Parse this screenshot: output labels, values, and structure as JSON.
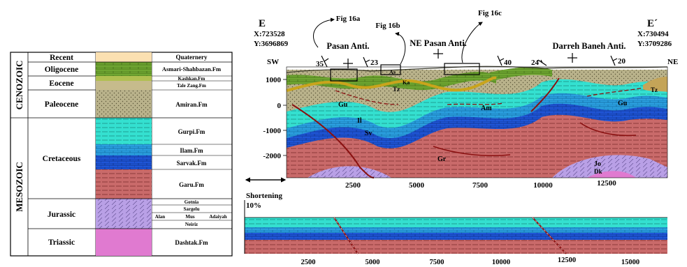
{
  "stratigraphic_column": {
    "eras": [
      "CENOZOIC",
      "MESOZOIC"
    ],
    "periods": [
      "Recent",
      "Oligocene",
      "Eocene",
      "Paleocene",
      "Cretaceous",
      "Jurassic",
      "Triassic"
    ],
    "formations": [
      "Quaternery",
      "Asmari-Shahbazan.Fm",
      "Kashkan.Fm",
      "Tale Zang.Fm",
      "Amiran.Fm",
      "Gurpi.Fm",
      "Ilam.Fm",
      "Sarvak.Fm",
      "Garu.Fm",
      "Gotnia",
      "Sargelu",
      "Alan",
      "Mus",
      "Adaiyah",
      "Neiriz",
      "Dashtak.Fm"
    ]
  },
  "section": {
    "endpoint_left": {
      "label": "E",
      "x": "X:723528",
      "y": "Y:3696869"
    },
    "endpoint_right": {
      "label": "E´",
      "x": "X:730494",
      "y": "Y:3709286"
    },
    "direction_left": "SW",
    "direction_right": "NE",
    "anticlines": [
      "Pasan Anti.",
      "NE Pasan Anti.",
      "Darreh Baneh Anti."
    ],
    "figure_refs": [
      "Fig 16a",
      "Fig 16b",
      "Fig 16c"
    ],
    "dips": [
      "35",
      "23",
      "40",
      "24",
      "20"
    ],
    "depth_ticks": [
      "1000",
      "0",
      "-1000",
      "-2000"
    ],
    "x_ticks": [
      "2500",
      "5000",
      "7500",
      "10000",
      "12500"
    ],
    "unit_labels": [
      "As",
      "Ka",
      "Tz",
      "Am",
      "Gu",
      "Il",
      "Sv",
      "Gr",
      "Jo",
      "Dk",
      "Tz"
    ]
  },
  "restored": {
    "title": "Shortening",
    "value": "10%",
    "x_ticks": [
      "2500",
      "5000",
      "7500",
      "10000",
      "12500",
      "15000"
    ]
  }
}
